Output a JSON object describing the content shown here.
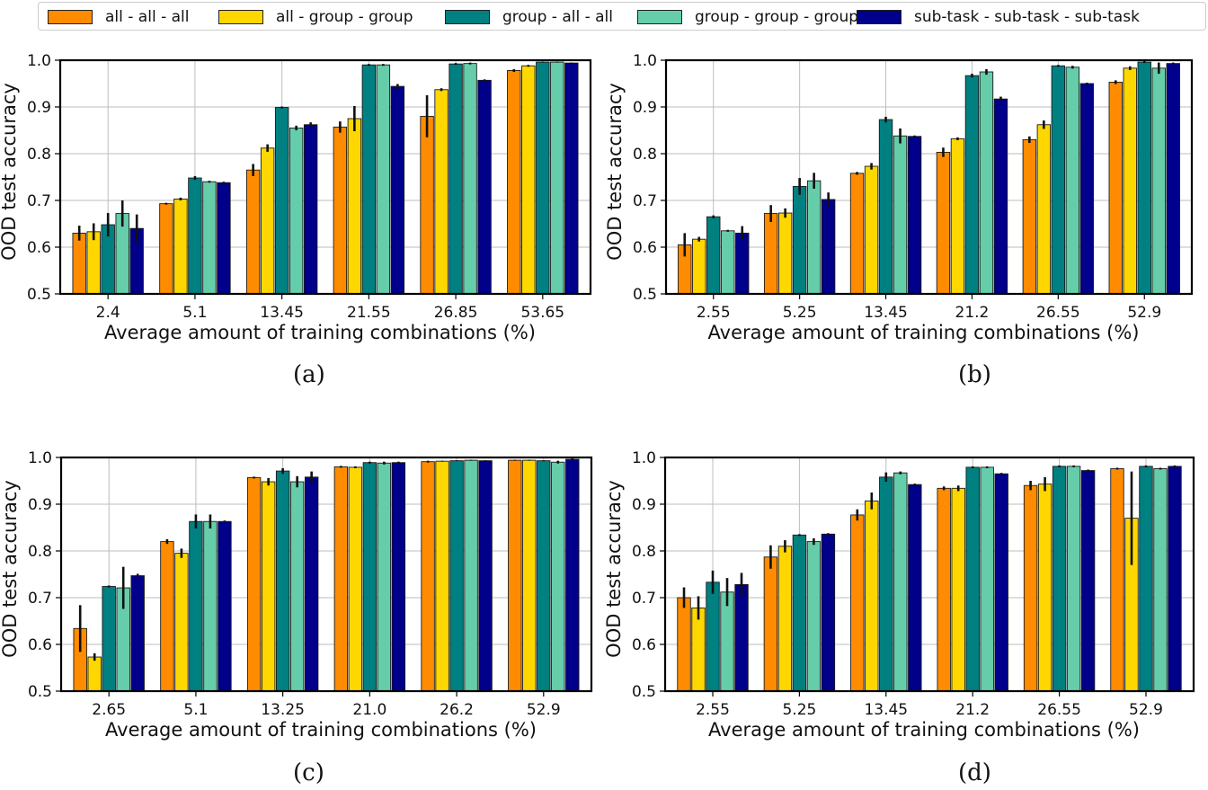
{
  "legend": [
    {
      "name": "all - all - all",
      "color": "#ff8c00"
    },
    {
      "name": "all - group - group",
      "color": "#ffd700"
    },
    {
      "name": "group - all - all",
      "color": "#008080"
    },
    {
      "name": "group - group - group",
      "color": "#66cdaa"
    },
    {
      "name": "sub-task - sub-task - sub-task",
      "color": "#00008b"
    }
  ],
  "chart_data": [
    {
      "type": "bar",
      "caption": "(a)",
      "xlabel": "Average amount of training combinations (%)",
      "ylabel": "OOD test accuracy",
      "ylim": [
        0.5,
        1.0
      ],
      "yticks": [
        "0.5",
        "0.6",
        "0.7",
        "0.8",
        "0.9",
        "1.0"
      ],
      "grid": true,
      "categories": [
        "2.4",
        "5.1",
        "13.45",
        "21.55",
        "26.85",
        "53.65"
      ],
      "series": [
        {
          "name": "all - all - all",
          "values": [
            0.63,
            0.693,
            0.765,
            0.857,
            0.88,
            0.978
          ],
          "errors": [
            0.016,
            0.002,
            0.013,
            0.012,
            0.045,
            0.003
          ]
        },
        {
          "name": "all - group - group",
          "values": [
            0.633,
            0.703,
            0.812,
            0.875,
            0.937,
            0.988
          ],
          "errors": [
            0.018,
            0.003,
            0.008,
            0.027,
            0.003,
            0.002
          ]
        },
        {
          "name": "group - all - all",
          "values": [
            0.648,
            0.748,
            0.899,
            0.99,
            0.992,
            0.996
          ],
          "errors": [
            0.025,
            0.004,
            0.002,
            0.002,
            0.002,
            0.001
          ]
        },
        {
          "name": "group - group - group",
          "values": [
            0.672,
            0.74,
            0.855,
            0.99,
            0.993,
            0.996
          ],
          "errors": [
            0.028,
            0.002,
            0.005,
            0.002,
            0.002,
            0.001
          ]
        },
        {
          "name": "sub-task - sub-task - sub-task",
          "values": [
            0.64,
            0.738,
            0.862,
            0.944,
            0.957,
            0.994
          ],
          "errors": [
            0.03,
            0.002,
            0.005,
            0.005,
            0.002,
            0.001
          ]
        }
      ]
    },
    {
      "type": "bar",
      "caption": "(b)",
      "xlabel": "Average amount of training combinations (%)",
      "ylabel": "OOD test accuracy",
      "ylim": [
        0.5,
        1.0
      ],
      "yticks": [
        "0.5",
        "0.6",
        "0.7",
        "0.8",
        "0.9",
        "1.0"
      ],
      "grid": true,
      "categories": [
        "2.55",
        "5.25",
        "13.45",
        "21.2",
        "26.55",
        "52.9"
      ],
      "series": [
        {
          "name": "all - all - all",
          "values": [
            0.605,
            0.672,
            0.758,
            0.803,
            0.83,
            0.953
          ],
          "errors": [
            0.025,
            0.018,
            0.003,
            0.01,
            0.007,
            0.004
          ]
        },
        {
          "name": "all - group - group",
          "values": [
            0.617,
            0.673,
            0.773,
            0.832,
            0.862,
            0.983
          ],
          "errors": [
            0.005,
            0.01,
            0.007,
            0.003,
            0.009,
            0.004
          ]
        },
        {
          "name": "group - all - all",
          "values": [
            0.665,
            0.73,
            0.873,
            0.967,
            0.988,
            0.996
          ],
          "errors": [
            0.003,
            0.018,
            0.006,
            0.004,
            0.002,
            0.002
          ]
        },
        {
          "name": "group - group - group",
          "values": [
            0.635,
            0.742,
            0.838,
            0.975,
            0.985,
            0.983
          ],
          "errors": [
            0.002,
            0.017,
            0.016,
            0.006,
            0.003,
            0.012
          ]
        },
        {
          "name": "sub-task - sub-task - sub-task",
          "values": [
            0.63,
            0.702,
            0.837,
            0.917,
            0.95,
            0.993
          ],
          "errors": [
            0.015,
            0.015,
            0.002,
            0.005,
            0.002,
            0.002
          ]
        }
      ]
    },
    {
      "type": "bar",
      "caption": "(c)",
      "xlabel": "Average amount of training combinations (%)",
      "ylabel": "OOD test accuracy",
      "ylim": [
        0.5,
        1.0
      ],
      "yticks": [
        "0.5",
        "0.6",
        "0.7",
        "0.8",
        "0.9",
        "1.0"
      ],
      "grid": true,
      "categories": [
        "2.65",
        "5.1",
        "13.25",
        "21.0",
        "26.2",
        "52.9"
      ],
      "series": [
        {
          "name": "all - all - all",
          "values": [
            0.634,
            0.82,
            0.957,
            0.98,
            0.991,
            0.994
          ],
          "errors": [
            0.05,
            0.005,
            0.002,
            0.002,
            0.002,
            0.001
          ]
        },
        {
          "name": "all - group - group",
          "values": [
            0.573,
            0.795,
            0.948,
            0.979,
            0.992,
            0.994
          ],
          "errors": [
            0.008,
            0.01,
            0.008,
            0.002,
            0.001,
            0.001
          ]
        },
        {
          "name": "group - all - all",
          "values": [
            0.724,
            0.863,
            0.971,
            0.989,
            0.993,
            0.993
          ],
          "errors": [
            0.002,
            0.015,
            0.006,
            0.002,
            0.001,
            0.001
          ]
        },
        {
          "name": "group - group - group",
          "values": [
            0.721,
            0.863,
            0.948,
            0.988,
            0.994,
            0.99
          ],
          "errors": [
            0.045,
            0.015,
            0.012,
            0.003,
            0.001,
            0.003
          ]
        },
        {
          "name": "sub-task - sub-task - sub-task",
          "values": [
            0.747,
            0.863,
            0.958,
            0.989,
            0.993,
            0.996
          ],
          "errors": [
            0.004,
            0.002,
            0.012,
            0.002,
            0.001,
            0.002
          ]
        }
      ]
    },
    {
      "type": "bar",
      "caption": "(d)",
      "xlabel": "Average amount of training combinations (%)",
      "ylabel": "OOD test accuracy",
      "ylim": [
        0.5,
        1.0
      ],
      "yticks": [
        "0.5",
        "0.6",
        "0.7",
        "0.8",
        "0.9",
        "1.0"
      ],
      "grid": true,
      "categories": [
        "2.55",
        "5.25",
        "13.45",
        "21.2",
        "26.55",
        "52.9"
      ],
      "series": [
        {
          "name": "all - all - all",
          "values": [
            0.7,
            0.787,
            0.877,
            0.934,
            0.94,
            0.976
          ],
          "errors": [
            0.022,
            0.025,
            0.012,
            0.004,
            0.01,
            0.002
          ]
        },
        {
          "name": "all - group - group",
          "values": [
            0.678,
            0.81,
            0.907,
            0.934,
            0.943,
            0.87
          ],
          "errors": [
            0.025,
            0.013,
            0.018,
            0.006,
            0.015,
            0.1
          ]
        },
        {
          "name": "group - all - all",
          "values": [
            0.733,
            0.834,
            0.958,
            0.979,
            0.981,
            0.981
          ],
          "errors": [
            0.025,
            0.002,
            0.01,
            0.002,
            0.002,
            0.002
          ]
        },
        {
          "name": "group - group - group",
          "values": [
            0.712,
            0.82,
            0.967,
            0.979,
            0.981,
            0.976
          ],
          "errors": [
            0.03,
            0.007,
            0.003,
            0.002,
            0.002,
            0.002
          ]
        },
        {
          "name": "sub-task - sub-task - sub-task",
          "values": [
            0.728,
            0.836,
            0.942,
            0.965,
            0.972,
            0.981
          ],
          "errors": [
            0.025,
            0.002,
            0.002,
            0.002,
            0.002,
            0.002
          ]
        }
      ]
    }
  ]
}
